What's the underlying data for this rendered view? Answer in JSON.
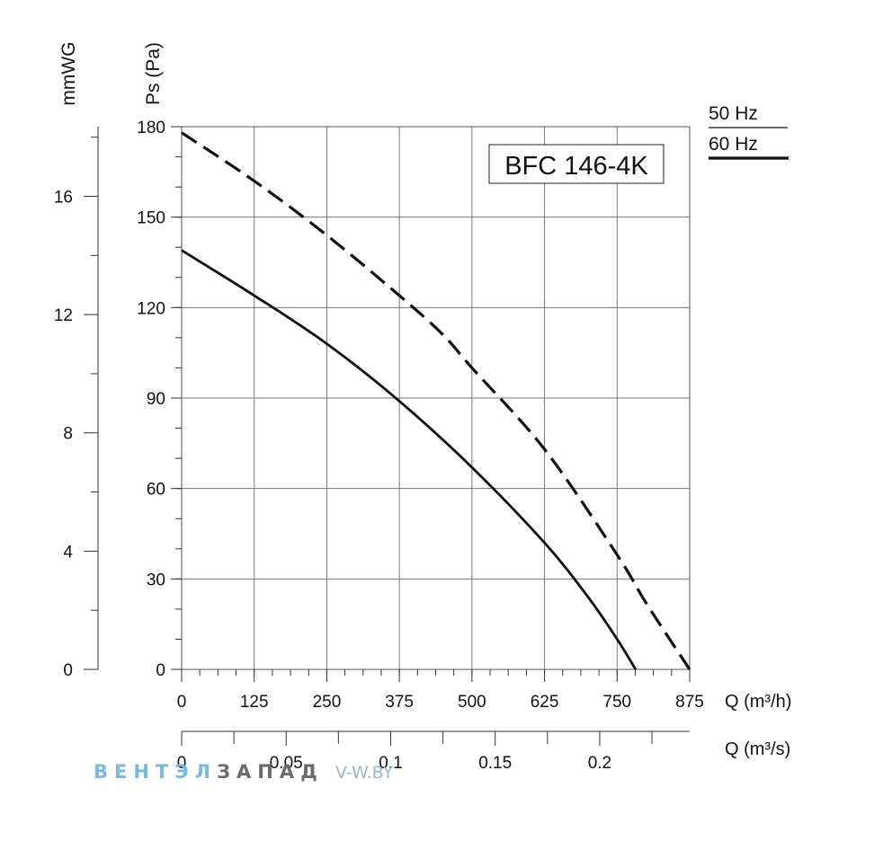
{
  "chart_data": {
    "type": "line",
    "title": "BFC 146-4K",
    "ylabel": "Ps (Pa)",
    "ylabel_secondary": "mmWG",
    "xlabel": "Q (m³/h)",
    "xlabel_secondary": "Q (m³/s)",
    "xlim": [
      0,
      875
    ],
    "ylim": [
      0,
      180
    ],
    "y_ticks": [
      "0",
      "30",
      "60",
      "90",
      "120",
      "150",
      "180"
    ],
    "x_ticks": [
      "0",
      "125",
      "250",
      "375",
      "500",
      "625",
      "750",
      "875"
    ],
    "y2_ticks": [
      "0",
      "4",
      "8",
      "12",
      "16"
    ],
    "x2_ticks": [
      "0",
      "0.05",
      "0.1",
      "0.15",
      "0.2"
    ],
    "grid": true,
    "legend": {
      "position": "top-right",
      "entries": [
        {
          "label": "50 Hz",
          "style": "thin"
        },
        {
          "label": "60 Hz",
          "style": "thick"
        }
      ]
    },
    "series": [
      {
        "name": "60 Hz",
        "style": "dashed",
        "x": [
          0,
          125,
          250,
          375,
          450,
          500,
          625,
          750,
          800,
          875
        ],
        "y": [
          178,
          162,
          144,
          124,
          111,
          100,
          73,
          38,
          22,
          0
        ]
      },
      {
        "name": "50 Hz",
        "style": "solid",
        "x": [
          0,
          125,
          250,
          375,
          500,
          625,
          700,
          750,
          782
        ],
        "y": [
          139,
          124,
          108,
          89,
          67,
          42,
          24,
          10,
          0
        ]
      }
    ]
  },
  "watermark": {
    "brand_part1": "ВЕНТЭЛ",
    "brand_part2": "ЗАПАД",
    "site": "V-W.BY",
    "color1": "#7ab8dc",
    "color2": "#6b6b6b",
    "site_color": "#9bb6cc"
  }
}
